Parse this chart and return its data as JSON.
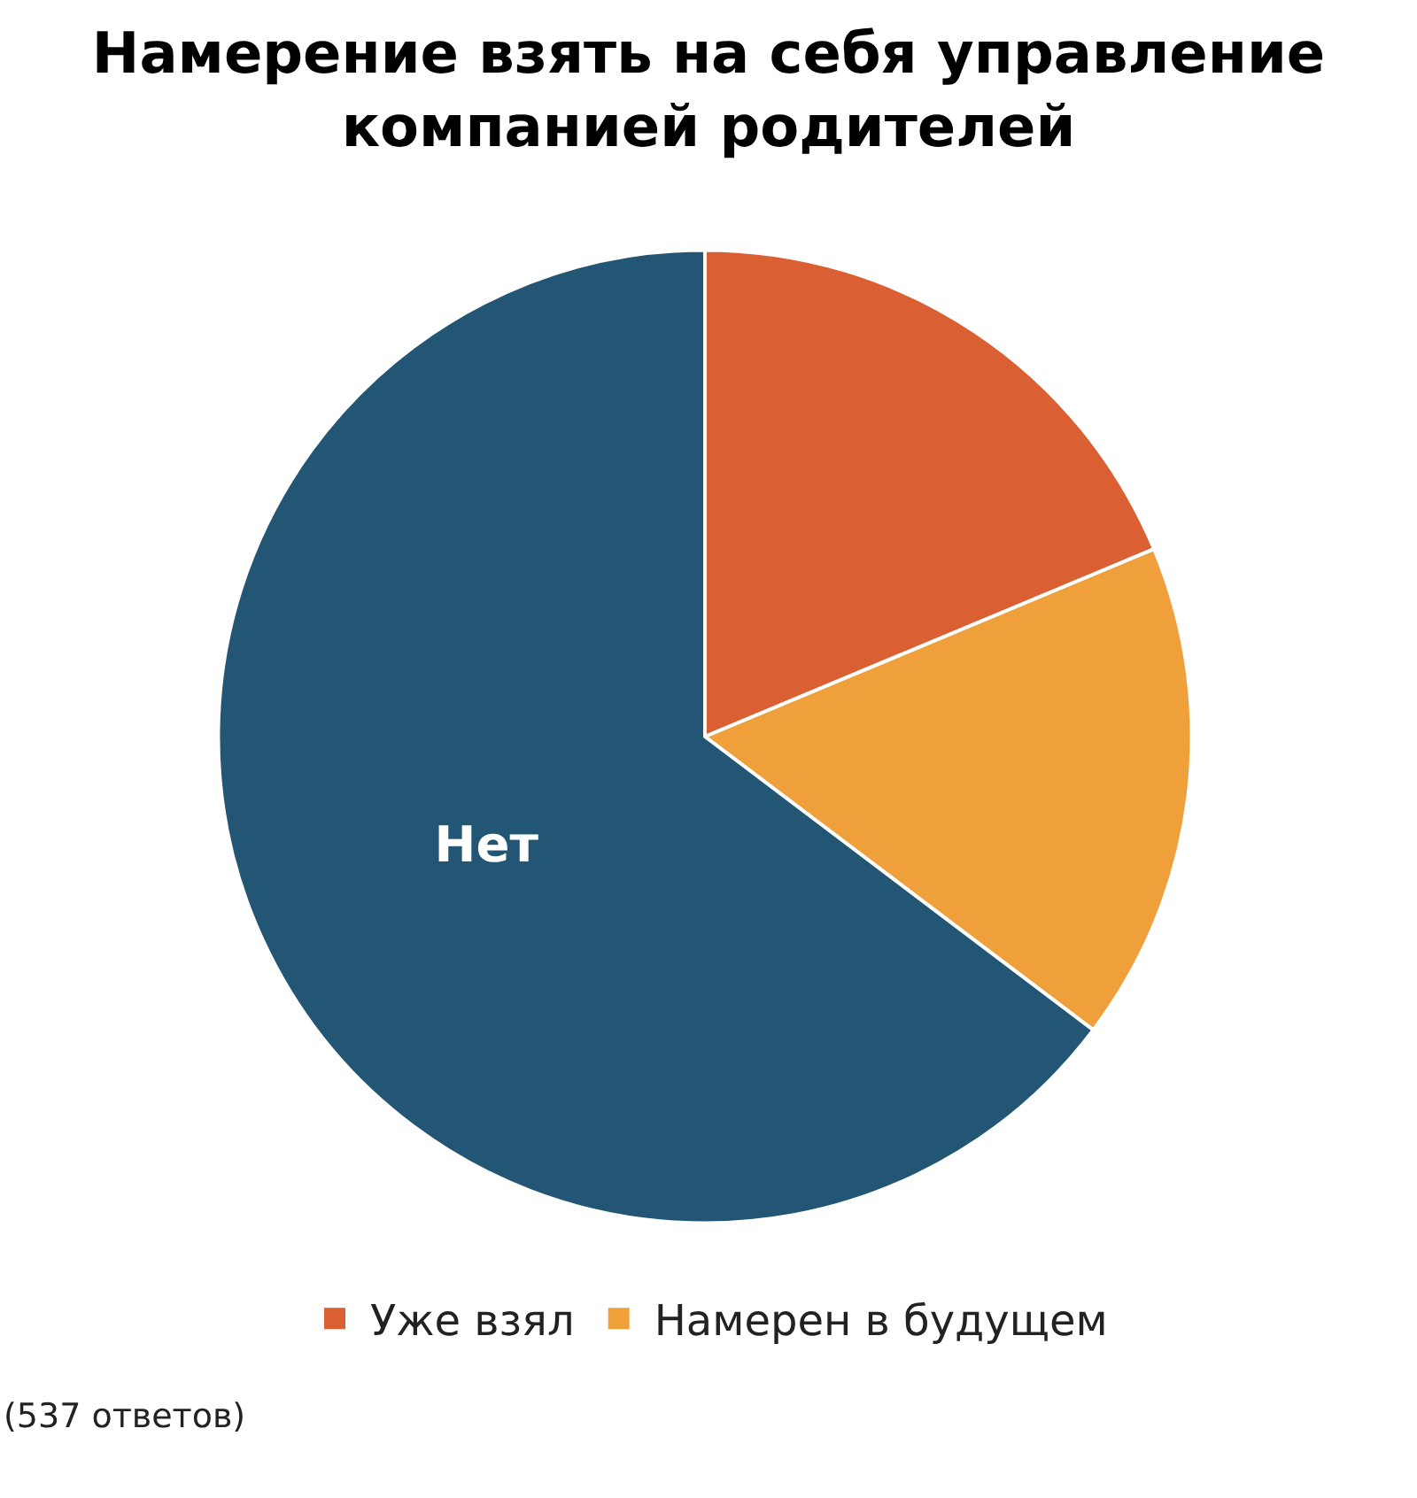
{
  "chart_data": {
    "type": "pie",
    "title": "Намерение взять на себя управление\nкомпанией родителей",
    "categories": [
      "Уже взял",
      "Намерен в будущем",
      "Нет"
    ],
    "values": [
      18.7,
      16.6,
      64.7
    ],
    "colors": [
      "#da5f32",
      "#f0a03a",
      "#235574"
    ],
    "legend": "bottom",
    "annotations": [
      "(537 ответов)"
    ]
  }
}
